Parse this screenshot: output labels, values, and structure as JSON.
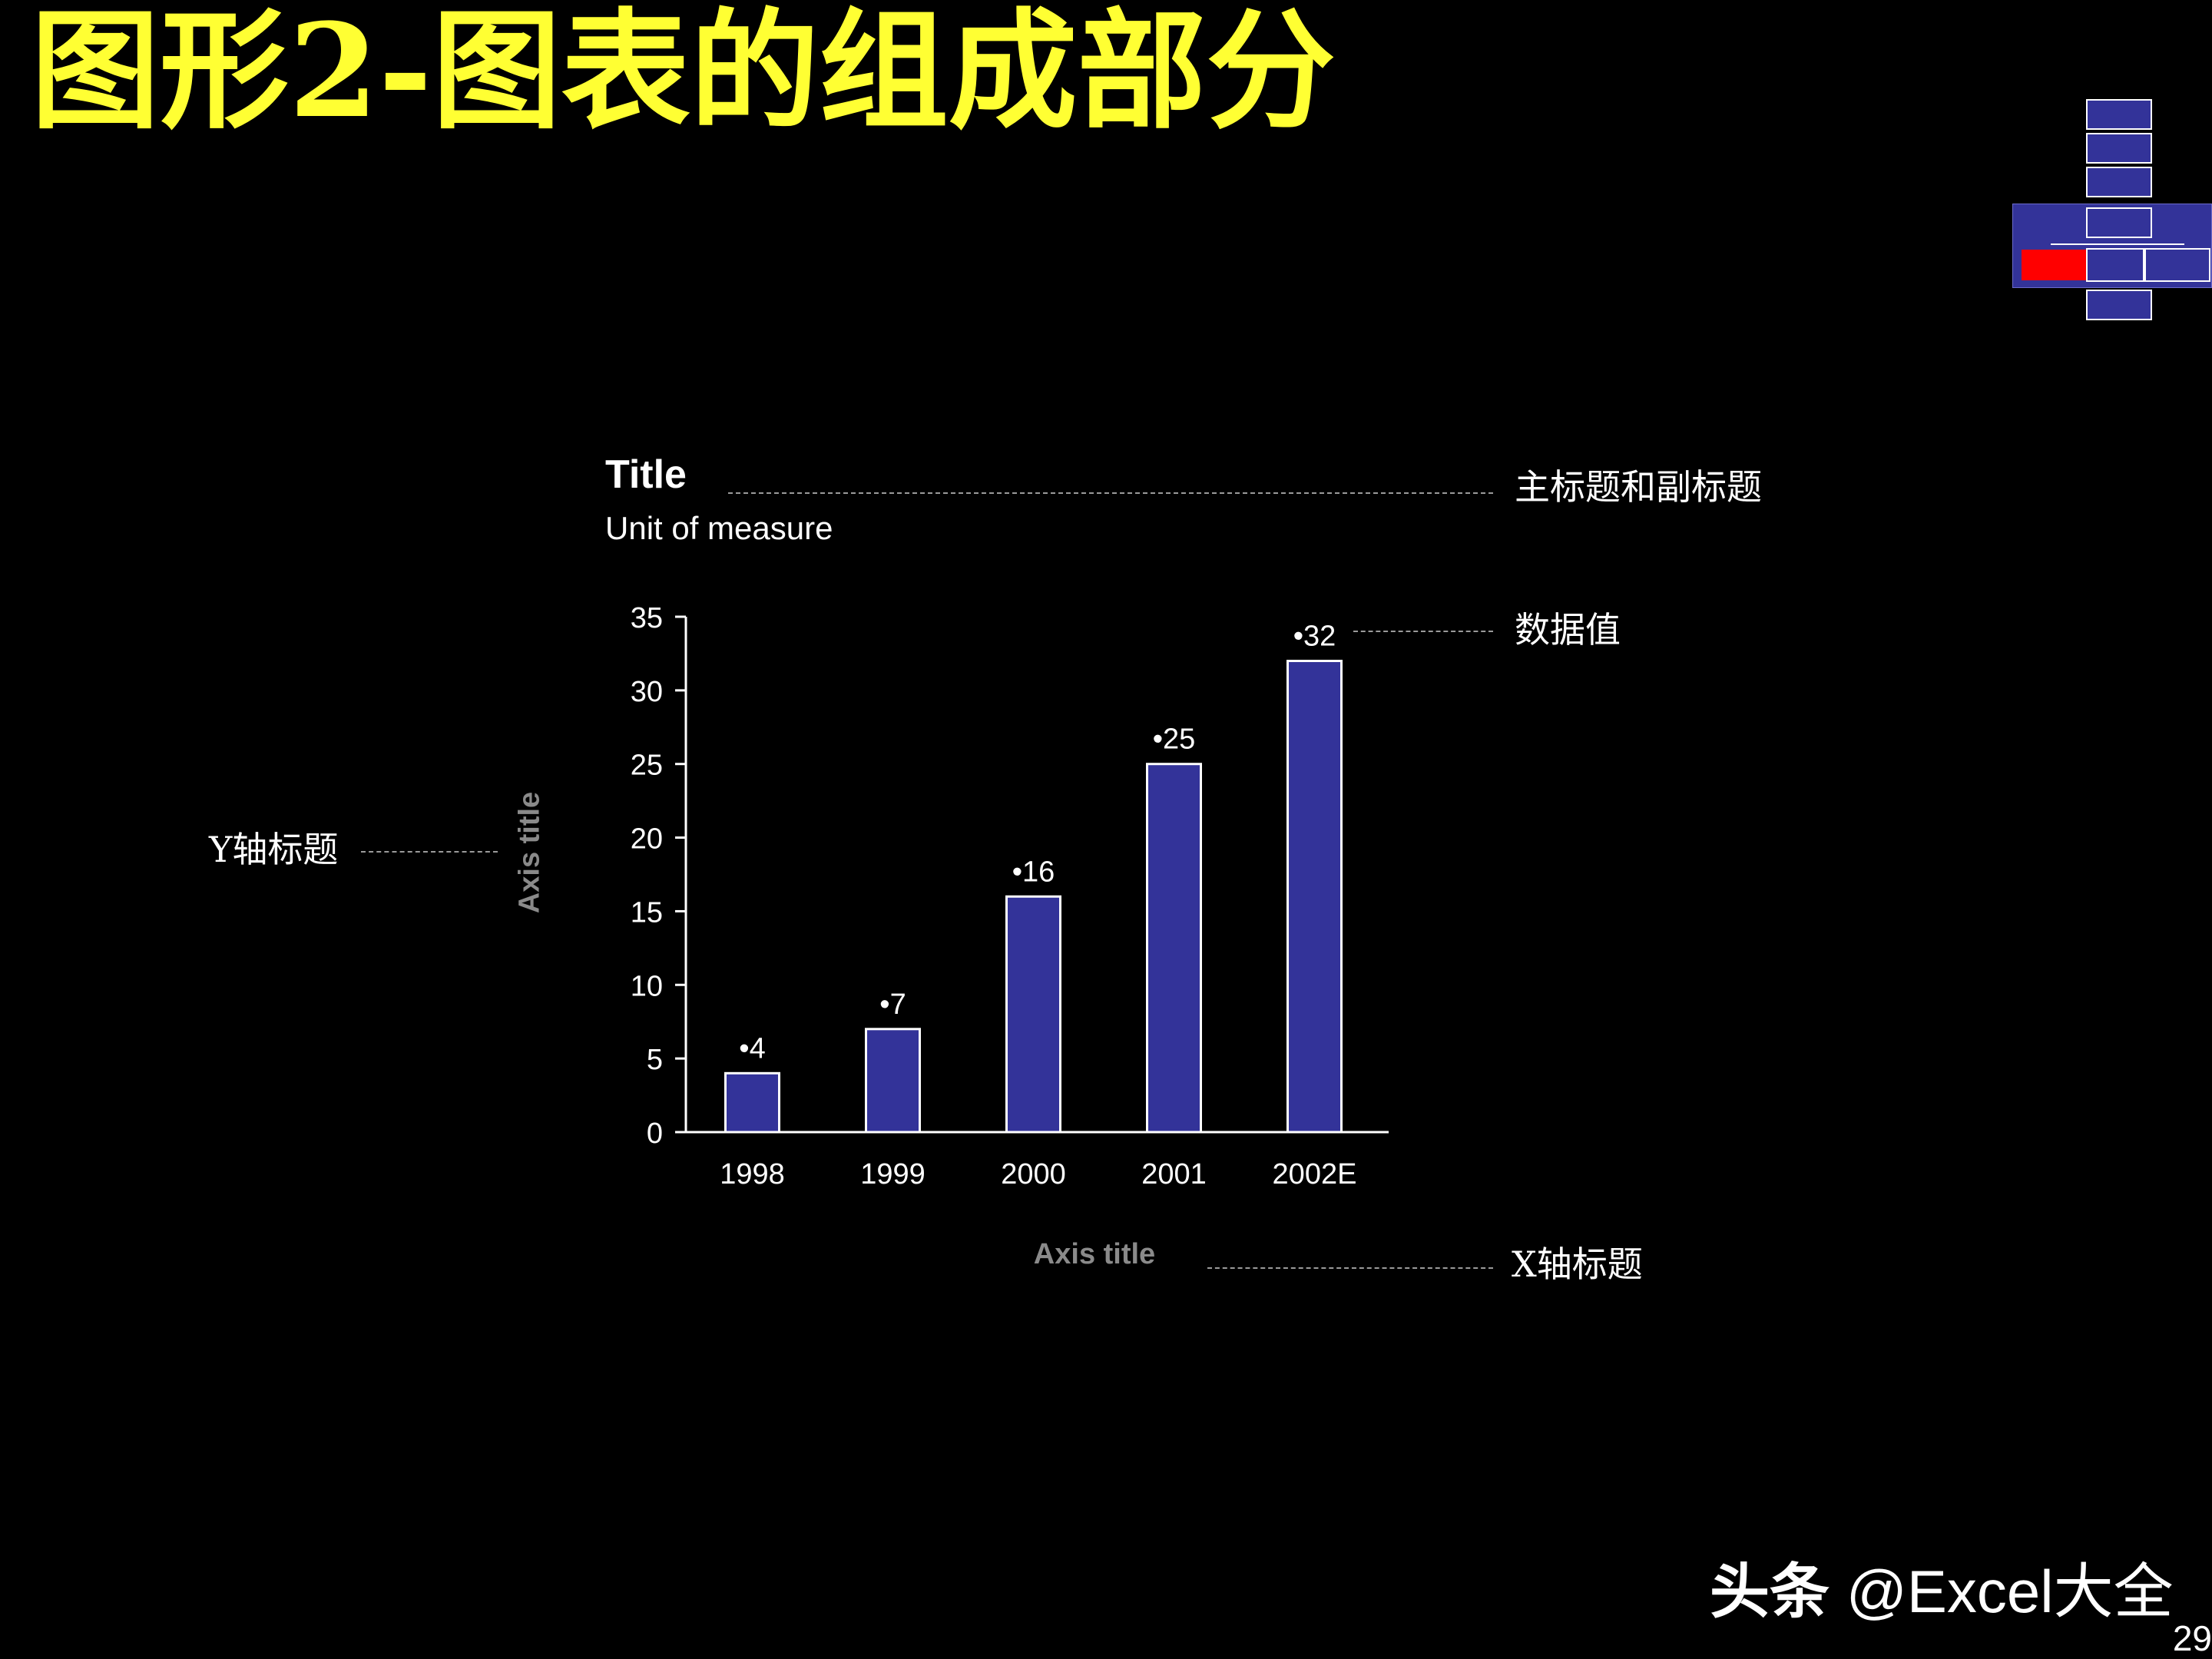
{
  "slide": {
    "title": "图形2-图表的组成部分",
    "page_number": "29",
    "watermark_prefix": "头条",
    "watermark_handle": "@Excel大全"
  },
  "annotations": {
    "title_note": "主标题和副标题",
    "data_note": "数据值",
    "y_note": "Y轴标题",
    "x_note": "X轴标题"
  },
  "colors": {
    "title": "#ffff33",
    "bar": "#333399",
    "bar_border": "#ffffff",
    "axis_title": "#8a8a8a",
    "nav_active": "#ff0000"
  },
  "chart_data": {
    "type": "bar",
    "title": "Title",
    "subtitle": "Unit of measure",
    "xlabel": "Axis title",
    "ylabel": "Axis title",
    "categories": [
      "1998",
      "1999",
      "2000",
      "2001",
      "2002E"
    ],
    "values": [
      4,
      7,
      16,
      25,
      32
    ],
    "data_labels": [
      "•4",
      "•7",
      "•16",
      "•25",
      "•32"
    ],
    "ylim": [
      0,
      35
    ],
    "yticks": [
      0,
      5,
      10,
      15,
      20,
      25,
      30,
      35
    ],
    "grid": false,
    "legend": "none"
  }
}
